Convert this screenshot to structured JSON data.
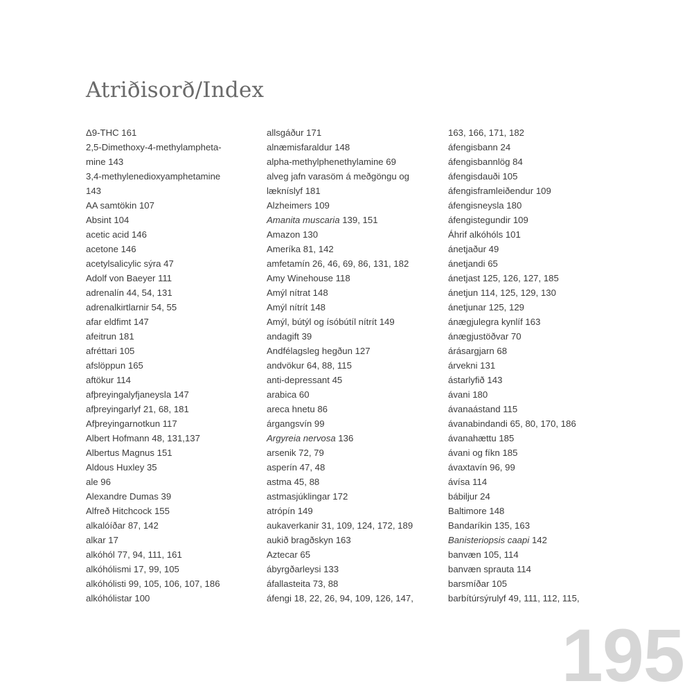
{
  "title": "Atriðisorð/Index",
  "page_number": "195",
  "columns": [
    [
      {
        "t": "Δ9-THC 161"
      },
      {
        "t": "2,5-Dimethoxy-4-methylampheta-"
      },
      {
        "t": "mine 143"
      },
      {
        "t": "3,4-methylenedioxyamphetamine"
      },
      {
        "t": "143"
      },
      {
        "t": "AA samtökin 107"
      },
      {
        "t": "Absint 104"
      },
      {
        "t": "acetic acid 146"
      },
      {
        "t": "acetone 146"
      },
      {
        "t": "acetylsalicylic sýra 47"
      },
      {
        "t": "Adolf von Baeyer 111"
      },
      {
        "t": "adrenalín 44, 54, 131"
      },
      {
        "t": "adrenalkirtlarnir 54, 55"
      },
      {
        "t": "afar eldfimt 147"
      },
      {
        "t": "afeitrun 181"
      },
      {
        "t": "afréttari 105"
      },
      {
        "t": "afslöppun 165"
      },
      {
        "t": "aftökur 114"
      },
      {
        "t": "afþreyingalyfjaneysla 147"
      },
      {
        "t": "afþreyingarlyf 21, 68, 181"
      },
      {
        "t": "Afþreyingarnotkun 117"
      },
      {
        "t": "Albert Hofmann 48, 131,137"
      },
      {
        "t": "Albertus Magnus 151"
      },
      {
        "t": "Aldous Huxley 35"
      },
      {
        "t": "ale 96"
      },
      {
        "t": "Alexandre Dumas 39"
      },
      {
        "t": "Alfreð Hitchcock 155"
      },
      {
        "t": "alkalóíðar 87, 142"
      },
      {
        "t": "alkar 17"
      },
      {
        "t": "alkóhól 77, 94, 111, 161"
      },
      {
        "t": "alkóhólismi 17, 99, 105"
      },
      {
        "t": "alkóhólisti 99, 105, 106, 107, 186"
      },
      {
        "t": "alkóhólistar 100"
      }
    ],
    [
      {
        "t": "allsgáður 171"
      },
      {
        "t": "alnæmisfaraldur 148"
      },
      {
        "t": "alpha-methylphenethylamine 69"
      },
      {
        "t": "alveg jafn varasöm á meðgöngu og"
      },
      {
        "t": "lækníslyf 181"
      },
      {
        "t": "Alzheimers 109"
      },
      {
        "t": "Amanita muscaria 139, 151",
        "italic": "Amanita muscaria"
      },
      {
        "t": "Amazon 130"
      },
      {
        "t": "Ameríka 81, 142"
      },
      {
        "t": "amfetamín 26, 46, 69, 86, 131, 182"
      },
      {
        "t": "Amy Winehouse 118"
      },
      {
        "t": "Amýl nítrat 148"
      },
      {
        "t": "Amýl nítrít 148"
      },
      {
        "t": "Amýl, bútýl og ísóbútíl nítrít 149"
      },
      {
        "t": "andagift 39"
      },
      {
        "t": "Andfélagsleg hegðun 127"
      },
      {
        "t": "andvökur 64, 88, 115"
      },
      {
        "t": "anti-depressant 45"
      },
      {
        "t": "arabica 60"
      },
      {
        "t": "areca hnetu 86"
      },
      {
        "t": "árgangsvín 99"
      },
      {
        "t": "Argyreia nervosa 136",
        "italic": "Argyreia nervosa"
      },
      {
        "t": "arsenik 72, 79"
      },
      {
        "t": "asperín 47, 48"
      },
      {
        "t": "astma 45, 88"
      },
      {
        "t": "astmasjúklingar 172"
      },
      {
        "t": "atrópín 149"
      },
      {
        "t": "aukaverkanir 31, 109, 124, 172, 189"
      },
      {
        "t": "aukið bragðskyn 163"
      },
      {
        "t": "Aztecar 65"
      },
      {
        "t": "ábyrgðarleysi 133"
      },
      {
        "t": "áfallasteita 73, 88"
      },
      {
        "t": "áfengi 18, 22, 26, 94, 109, 126, 147,"
      }
    ],
    [
      {
        "t": "163, 166, 171, 182"
      },
      {
        "t": "áfengisbann 24"
      },
      {
        "t": "áfengisbannlög 84"
      },
      {
        "t": "áfengisdauði 105"
      },
      {
        "t": "áfengisframleiðendur 109"
      },
      {
        "t": "áfengisneysla 180"
      },
      {
        "t": "áfengistegundir 109"
      },
      {
        "t": "Áhrif alkóhóls 101"
      },
      {
        "t": "ánetjaður 49"
      },
      {
        "t": "ánetjandi 65"
      },
      {
        "t": "ánetjast 125, 126, 127, 185"
      },
      {
        "t": "ánetjun 114, 125, 129, 130"
      },
      {
        "t": "ánetjunar 125, 129"
      },
      {
        "t": "ánægjulegra kynlíf 163"
      },
      {
        "t": "ánægjustöðvar 70"
      },
      {
        "t": "árásargjarn 68"
      },
      {
        "t": "árvekni 131"
      },
      {
        "t": "ástarlyfið 143"
      },
      {
        "t": "ávani 180"
      },
      {
        "t": "ávanaástand 115"
      },
      {
        "t": "ávanabindandi 65, 80, 170, 186"
      },
      {
        "t": "ávanahættu 185"
      },
      {
        "t": "ávani og fíkn 185"
      },
      {
        "t": "ávaxtavín 96, 99"
      },
      {
        "t": "ávísa 114"
      },
      {
        "t": "bábiljur 24"
      },
      {
        "t": "Baltimore 148"
      },
      {
        "t": "Bandaríkin 135, 163"
      },
      {
        "t": "Banisteriopsis caapi 142",
        "italic": "Banisteriopsis caapi"
      },
      {
        "t": "banvæn 105, 114"
      },
      {
        "t": "banvæn sprauta 114"
      },
      {
        "t": "barsmíðar 105"
      },
      {
        "t": "barbítúrsýrulyf  49,  111,  112,  115,"
      }
    ]
  ]
}
